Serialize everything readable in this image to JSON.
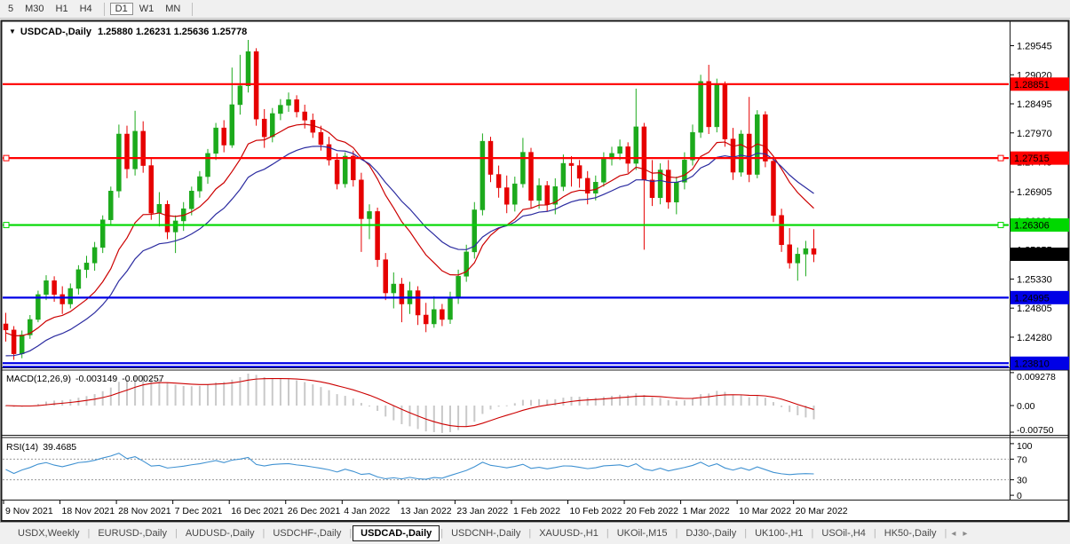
{
  "toolbar": {
    "timeframes": [
      {
        "label": "5",
        "active": false
      },
      {
        "label": "M30",
        "active": false
      },
      {
        "label": "H1",
        "active": false
      },
      {
        "label": "H4",
        "active": false
      },
      {
        "label": "D1",
        "active": true
      },
      {
        "label": "W1",
        "active": false
      },
      {
        "label": "MN",
        "active": false
      }
    ]
  },
  "title": {
    "marker": "▼",
    "symbol": "USDCAD-,Daily",
    "ohlc": "1.25880 1.26231 1.25636 1.25778"
  },
  "tabs": {
    "items": [
      "USDX,Weekly",
      "EURUSD-,Daily",
      "AUDUSD-,Daily",
      "USDCHF-,Daily",
      "USDCAD-,Daily",
      "USDCNH-,Daily",
      "XAUUSD-,H1",
      "UKOil-,M15",
      "DJ30-,Daily",
      "UK100-,H1",
      "USOil-,H4",
      "HK50-,Daily"
    ],
    "active_index": 4,
    "nav_back": "◂",
    "nav_fwd": "▸"
  },
  "chart_data": {
    "type": "candlestick+indicators",
    "symbol": "USDCAD-,Daily",
    "current_bar": {
      "open": "1.25880",
      "high": "1.26231",
      "low": "1.25636",
      "close": "1.25778"
    },
    "price_range": {
      "max": 1.2997,
      "min": 1.2375
    },
    "y_ticks": [
      {
        "label": "1.29545",
        "value": 1.29545
      },
      {
        "label": "1.29020",
        "value": 1.2902
      },
      {
        "label": "1.28495",
        "value": 1.28495
      },
      {
        "label": "1.27970",
        "value": 1.2797
      },
      {
        "label": "1.27445",
        "value": 1.27445
      },
      {
        "label": "1.26905",
        "value": 1.26905
      },
      {
        "label": "1.26380",
        "value": 1.2638
      },
      {
        "label": "1.25855",
        "value": 1.25855
      },
      {
        "label": "1.25330",
        "value": 1.2533
      },
      {
        "label": "1.24805",
        "value": 1.24805
      },
      {
        "label": "1.24280",
        "value": 1.2428
      },
      {
        "label": "1.23755",
        "value": 1.23755
      }
    ],
    "x_dates": [
      "9 Nov 2021",
      "18 Nov 2021",
      "28 Nov 2021",
      "7 Dec 2021",
      "16 Dec 2021",
      "26 Dec 2021",
      "4 Jan 2022",
      "13 Jan 2022",
      "23 Jan 2022",
      "1 Feb 2022",
      "10 Feb 2022",
      "20 Feb 2022",
      "1 Mar 2022",
      "10 Mar 2022",
      "20 Mar 2022"
    ],
    "horizontal_levels": [
      {
        "price": 1.28851,
        "label": "1.28851",
        "color": "#ff0000",
        "badge_text": "#ffffff",
        "handles": false,
        "double": false
      },
      {
        "price": 1.27515,
        "label": "1.27515",
        "color": "#ff0000",
        "badge_text": "#ffffff",
        "handles": true,
        "double": false
      },
      {
        "price": 1.26306,
        "label": "1.26306",
        "color": "#00d800",
        "badge_text": "#003300",
        "handles": true,
        "double": false
      },
      {
        "price": 1.24995,
        "label": "1.24995",
        "color": "#0000e6",
        "badge_text": "#ffffff",
        "handles": false,
        "double": false
      },
      {
        "price": 1.2381,
        "label": "1.23810",
        "color": "#0000e6",
        "badge_text": "#ffffff",
        "handles": false,
        "double": true
      }
    ],
    "current_price_badge": {
      "price": 1.25778,
      "label": "1.25778",
      "bg": "#000000",
      "text": "#ffffff"
    },
    "colors": {
      "candle_up": "#1caa1c",
      "candle_down": "#e60000",
      "ma_fast": "#cc0000",
      "ma_slow": "#2b2ba0"
    },
    "moving_averages": [
      {
        "name": "ma-fast",
        "color": "#cc0000",
        "period": 13
      },
      {
        "name": "ma-slow",
        "color": "#2b2ba0",
        "period": 22
      }
    ],
    "candles_ohlc": [
      [
        1.2452,
        1.2472,
        1.242,
        1.2441
      ],
      [
        1.2441,
        1.2448,
        1.2387,
        1.2398
      ],
      [
        1.2398,
        1.244,
        1.239,
        1.2432
      ],
      [
        1.2432,
        1.2468,
        1.2425,
        1.246
      ],
      [
        1.246,
        1.2512,
        1.2455,
        1.2505
      ],
      [
        1.2505,
        1.254,
        1.2495,
        1.253
      ],
      [
        1.253,
        1.2538,
        1.2492,
        1.2505
      ],
      [
        1.2505,
        1.252,
        1.247,
        1.2488
      ],
      [
        1.2488,
        1.2525,
        1.248,
        1.2516
      ],
      [
        1.2516,
        1.2558,
        1.2505,
        1.255
      ],
      [
        1.255,
        1.2575,
        1.2535,
        1.2562
      ],
      [
        1.2562,
        1.26,
        1.2548,
        1.259
      ],
      [
        1.259,
        1.2648,
        1.258,
        1.264
      ],
      [
        1.264,
        1.27,
        1.263,
        1.2692
      ],
      [
        1.2692,
        1.2812,
        1.268,
        1.2795
      ],
      [
        1.2795,
        1.281,
        1.2715,
        1.2732
      ],
      [
        1.2732,
        1.2837,
        1.272,
        1.28
      ],
      [
        1.28,
        1.2818,
        1.2725,
        1.2738
      ],
      [
        1.2738,
        1.275,
        1.264,
        1.2652
      ],
      [
        1.2652,
        1.269,
        1.2628,
        1.2668
      ],
      [
        1.2668,
        1.2675,
        1.2605,
        1.2618
      ],
      [
        1.2618,
        1.2648,
        1.258,
        1.2638
      ],
      [
        1.2638,
        1.2672,
        1.262,
        1.266
      ],
      [
        1.266,
        1.27,
        1.2648,
        1.2692
      ],
      [
        1.2692,
        1.2728,
        1.268,
        1.2718
      ],
      [
        1.2718,
        1.2768,
        1.2705,
        1.276
      ],
      [
        1.276,
        1.2815,
        1.2748,
        1.2806
      ],
      [
        1.2806,
        1.282,
        1.2762,
        1.2775
      ],
      [
        1.2775,
        1.2915,
        1.277,
        1.2848
      ],
      [
        1.2848,
        1.2938,
        1.283,
        1.2882
      ],
      [
        1.2882,
        1.2965,
        1.287,
        1.2944
      ],
      [
        1.2944,
        1.295,
        1.281,
        1.2822
      ],
      [
        1.2822,
        1.284,
        1.277,
        1.279
      ],
      [
        1.279,
        1.2842,
        1.278,
        1.2832
      ],
      [
        1.2832,
        1.2858,
        1.282,
        1.2847
      ],
      [
        1.2847,
        1.287,
        1.2835,
        1.2857
      ],
      [
        1.2857,
        1.2865,
        1.2825,
        1.2835
      ],
      [
        1.2835,
        1.2848,
        1.2805,
        1.282
      ],
      [
        1.282,
        1.2832,
        1.2788,
        1.2798
      ],
      [
        1.2798,
        1.281,
        1.2765,
        1.2776
      ],
      [
        1.2776,
        1.279,
        1.2738,
        1.2748
      ],
      [
        1.2748,
        1.276,
        1.2695,
        1.2705
      ],
      [
        1.2705,
        1.2762,
        1.2698,
        1.2755
      ],
      [
        1.2755,
        1.2765,
        1.27,
        1.2712
      ],
      [
        1.2712,
        1.2725,
        1.2582,
        1.2642
      ],
      [
        1.2642,
        1.2668,
        1.2605,
        1.2655
      ],
      [
        1.2655,
        1.2662,
        1.2555,
        1.2568
      ],
      [
        1.2568,
        1.258,
        1.2495,
        1.2508
      ],
      [
        1.2508,
        1.2545,
        1.248,
        1.2524
      ],
      [
        1.2524,
        1.2535,
        1.2455,
        1.2488
      ],
      [
        1.2488,
        1.2528,
        1.247,
        1.2512
      ],
      [
        1.2512,
        1.252,
        1.245,
        1.2468
      ],
      [
        1.2468,
        1.249,
        1.2437,
        1.2452
      ],
      [
        1.2452,
        1.2502,
        1.2445,
        1.2478
      ],
      [
        1.2478,
        1.2488,
        1.2448,
        1.246
      ],
      [
        1.246,
        1.251,
        1.2452,
        1.2498
      ],
      [
        1.2498,
        1.255,
        1.2488,
        1.2538
      ],
      [
        1.2538,
        1.2595,
        1.2528,
        1.2582
      ],
      [
        1.2582,
        1.2672,
        1.257,
        1.2658
      ],
      [
        1.2658,
        1.2796,
        1.2648,
        1.2782
      ],
      [
        1.2782,
        1.279,
        1.2708,
        1.2722
      ],
      [
        1.2722,
        1.2738,
        1.268,
        1.2698
      ],
      [
        1.2698,
        1.272,
        1.2652,
        1.2668
      ],
      [
        1.2668,
        1.2718,
        1.2655,
        1.2705
      ],
      [
        1.2705,
        1.2788,
        1.2698,
        1.2762
      ],
      [
        1.2762,
        1.277,
        1.2662,
        1.2675
      ],
      [
        1.2675,
        1.2715,
        1.266,
        1.2702
      ],
      [
        1.2702,
        1.271,
        1.2655,
        1.2668
      ],
      [
        1.2668,
        1.2715,
        1.265,
        1.27
      ],
      [
        1.27,
        1.2758,
        1.2692,
        1.2742
      ],
      [
        1.2742,
        1.2755,
        1.27,
        1.2738
      ],
      [
        1.2738,
        1.2748,
        1.2698,
        1.2715
      ],
      [
        1.2715,
        1.2728,
        1.2668,
        1.2688
      ],
      [
        1.2688,
        1.272,
        1.2675,
        1.2708
      ],
      [
        1.2708,
        1.2762,
        1.27,
        1.275
      ],
      [
        1.275,
        1.2772,
        1.2738,
        1.276
      ],
      [
        1.276,
        1.2785,
        1.2748,
        1.2772
      ],
      [
        1.2772,
        1.278,
        1.2725,
        1.2742
      ],
      [
        1.2742,
        1.2877,
        1.273,
        1.2808
      ],
      [
        1.2808,
        1.2815,
        1.2586,
        1.2712
      ],
      [
        1.2712,
        1.2748,
        1.2665,
        1.268
      ],
      [
        1.268,
        1.2742,
        1.2668,
        1.273
      ],
      [
        1.273,
        1.2748,
        1.266,
        1.2672
      ],
      [
        1.2672,
        1.2718,
        1.265,
        1.2708
      ],
      [
        1.2708,
        1.2762,
        1.2695,
        1.2748
      ],
      [
        1.2748,
        1.2812,
        1.2738,
        1.2798
      ],
      [
        1.2798,
        1.2902,
        1.2788,
        1.289
      ],
      [
        1.289,
        1.292,
        1.2795,
        1.2808
      ],
      [
        1.2808,
        1.2895,
        1.2798,
        1.2885
      ],
      [
        1.2885,
        1.289,
        1.2772,
        1.2786
      ],
      [
        1.2786,
        1.2806,
        1.2712,
        1.2726
      ],
      [
        1.2726,
        1.2802,
        1.2718,
        1.2795
      ],
      [
        1.2795,
        1.2862,
        1.2708,
        1.2722
      ],
      [
        1.2722,
        1.2838,
        1.2715,
        1.283
      ],
      [
        1.283,
        1.2836,
        1.2735,
        1.2746
      ],
      [
        1.2746,
        1.2752,
        1.2636,
        1.2648
      ],
      [
        1.2648,
        1.266,
        1.2582,
        1.2595
      ],
      [
        1.2595,
        1.2625,
        1.2552,
        1.2562
      ],
      [
        1.2562,
        1.259,
        1.253,
        1.2578
      ],
      [
        1.2578,
        1.2602,
        1.2538,
        1.2588
      ],
      [
        1.2588,
        1.26231,
        1.25636,
        1.25778
      ]
    ],
    "macd": {
      "label": "MACD(12,26,9)",
      "value": "-0.003149",
      "signal_value": "-0.000257",
      "params": {
        "fast": 12,
        "slow": 26,
        "signal": 9
      },
      "axis": [
        {
          "label": "0.009278",
          "value": 0.009278
        },
        {
          "label": "0.00",
          "value": 0
        },
        {
          "label": "-0.00750",
          "value": -0.0075
        }
      ],
      "range": {
        "max": 0.0095,
        "min": -0.008
      },
      "histogram_color": "#c9c9c9",
      "signal_color": "#cc0000"
    },
    "rsi": {
      "label": "RSI(14)",
      "value": "39.4685",
      "period": 14,
      "axis": [
        {
          "label": "100",
          "value": 100
        },
        {
          "label": "70",
          "value": 70,
          "dashed": true
        },
        {
          "label": "30",
          "value": 30,
          "dashed": true
        },
        {
          "label": "0",
          "value": 0
        }
      ],
      "range": {
        "max": 105,
        "min": -5
      },
      "line_color": "#4092d2"
    }
  }
}
